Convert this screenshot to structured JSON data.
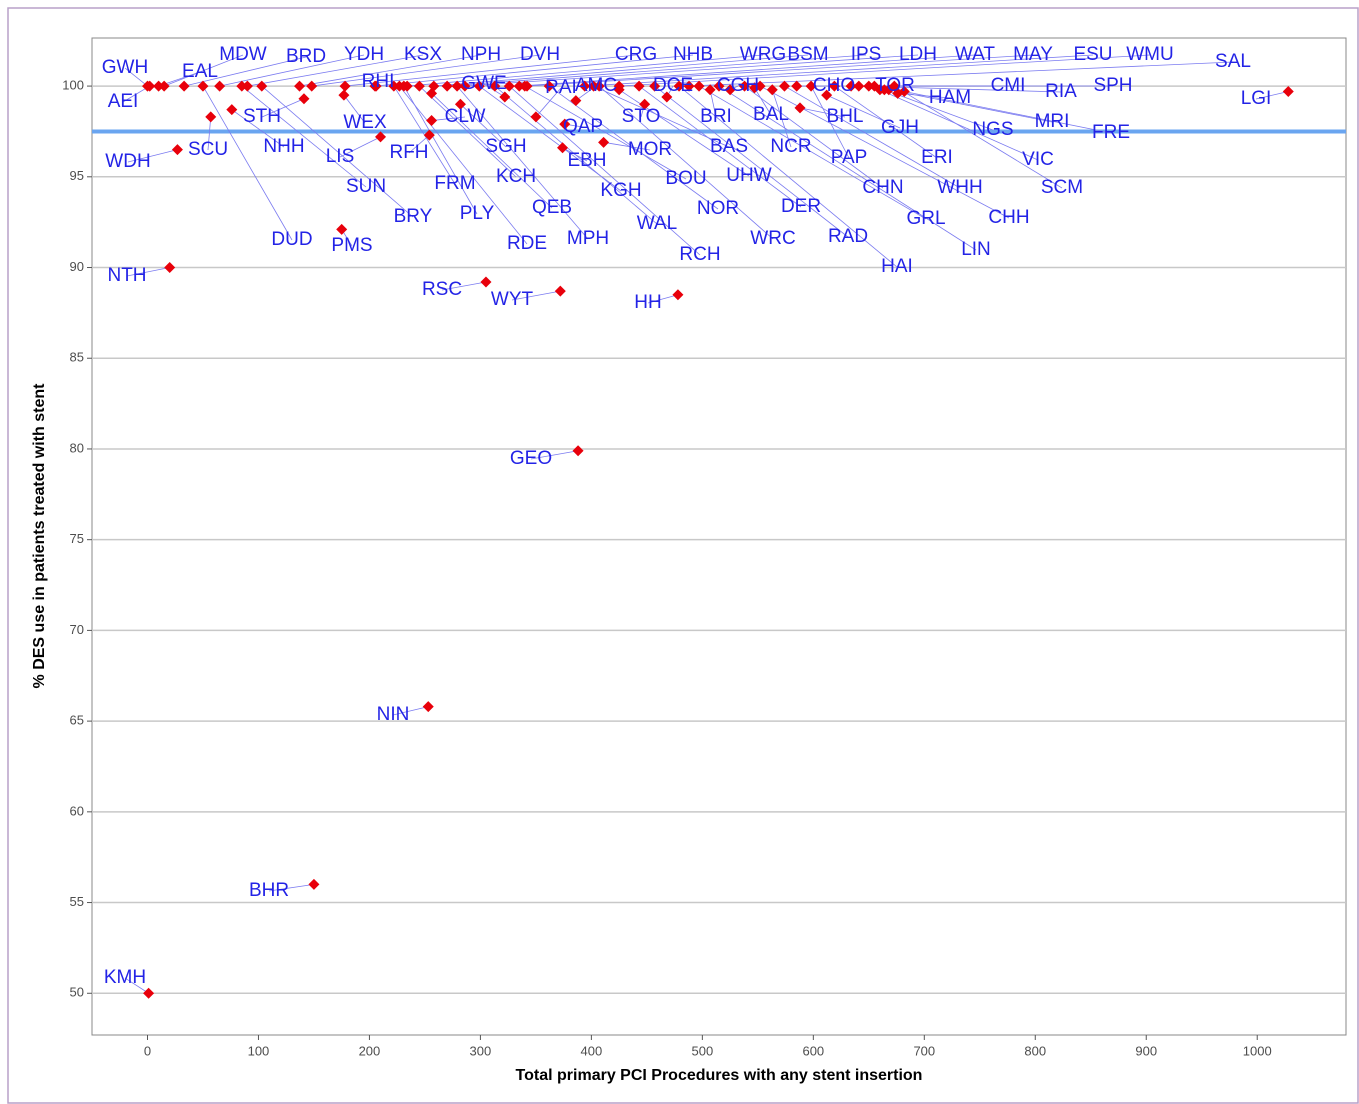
{
  "chart_data": {
    "type": "scatter",
    "x_label": "Total primary PCI Procedures with any stent insertion",
    "y_label": "% DES use in patients treated with stent",
    "labels": [
      "GWH",
      "AEI",
      "EAL",
      "MDW",
      "BRD",
      "YDH",
      "KSX",
      "NPH",
      "DVH",
      "CRG",
      "NHB",
      "WRG",
      "BSM",
      "IPS",
      "LDH",
      "WAT",
      "MAY",
      "ESU",
      "WMU",
      "SAL",
      "LGI",
      "WDH",
      "SCU",
      "STH",
      "NHH",
      "WEX",
      "LIS",
      "RFH",
      "RHI",
      "SUN",
      "BRY",
      "DUD",
      "PMS",
      "NTH",
      "CLW",
      "SGH",
      "FRM",
      "PLY",
      "KCH",
      "QEB",
      "RDE",
      "MPH",
      "GWE",
      "RAI",
      "AMC",
      "QAP",
      "EBH",
      "MOR",
      "STO",
      "KGH",
      "WAL",
      "RCH",
      "BOU",
      "NOR",
      "DCE",
      "BRI",
      "CGH",
      "BAS",
      "UHW",
      "DER",
      "WRC",
      "BAL",
      "NCR",
      "RAD",
      "HAI",
      "CHO",
      "BHL",
      "PAP",
      "CHN",
      "GRL",
      "LIN",
      "TOR",
      "GJH",
      "ERI",
      "WHH",
      "CHH",
      "HAM",
      "NGS",
      "CMI",
      "RIA",
      "SPH",
      "MRI",
      "FRE",
      "VIC",
      "SCM",
      "RSC",
      "WYT",
      "HH",
      "GEO",
      "NIN",
      "BHR",
      "KMH"
    ],
    "x": [
      0,
      2,
      10,
      15,
      33,
      65,
      90,
      137,
      148,
      178,
      205,
      234,
      258,
      270,
      286,
      335,
      342,
      394,
      425,
      488,
      1028,
      27,
      57,
      141,
      76,
      177,
      210,
      254,
      206,
      85,
      103,
      50,
      175,
      20,
      256,
      282,
      222,
      231,
      245,
      256,
      227,
      279,
      322,
      350,
      386,
      376,
      374,
      411,
      448,
      299,
      313,
      326,
      340,
      362,
      468,
      507,
      525,
      402,
      425,
      443,
      407,
      547,
      563,
      457,
      479,
      585,
      588,
      598,
      538,
      497,
      515,
      634,
      612,
      619,
      574,
      552,
      676,
      664,
      650,
      641,
      655,
      668,
      682,
      660,
      673,
      305,
      372,
      478,
      388,
      253,
      150,
      1
    ],
    "y": [
      100,
      100,
      100,
      100,
      100,
      100,
      100,
      100,
      100,
      100,
      100,
      100,
      100,
      100,
      100,
      100,
      100,
      100,
      100,
      100,
      99.7,
      96.5,
      98.3,
      99.3,
      98.7,
      99.5,
      97.2,
      97.3,
      100,
      100,
      100,
      100,
      92.1,
      90,
      98.1,
      99,
      100,
      100,
      100,
      99.6,
      100,
      100,
      99.4,
      98.3,
      99.2,
      97.9,
      96.6,
      96.9,
      99,
      100,
      100,
      100,
      100,
      100,
      99.4,
      99.8,
      99.8,
      100,
      99.8,
      100,
      100,
      99.9,
      99.8,
      100,
      100,
      100,
      98.8,
      100,
      100,
      100,
      100,
      100,
      99.5,
      100,
      100,
      100,
      99.6,
      99.8,
      100,
      100,
      100,
      99.8,
      99.7,
      99.8,
      100,
      89.2,
      88.7,
      88.5,
      79.9,
      65.8,
      56,
      50
    ],
    "color": "#e8000b",
    "label_color": "#2323e6",
    "reference_line": {
      "value": 97.5,
      "color": "#6aa5f0"
    },
    "xlim": [
      -50,
      1080
    ],
    "ylim": [
      47.7,
      102.65
    ],
    "xticks": [
      0,
      100,
      200,
      300,
      400,
      500,
      600,
      700,
      800,
      900,
      1000
    ],
    "yticks": [
      50,
      55,
      60,
      65,
      70,
      75,
      80,
      85,
      90,
      95,
      100
    ],
    "grid": true
  }
}
